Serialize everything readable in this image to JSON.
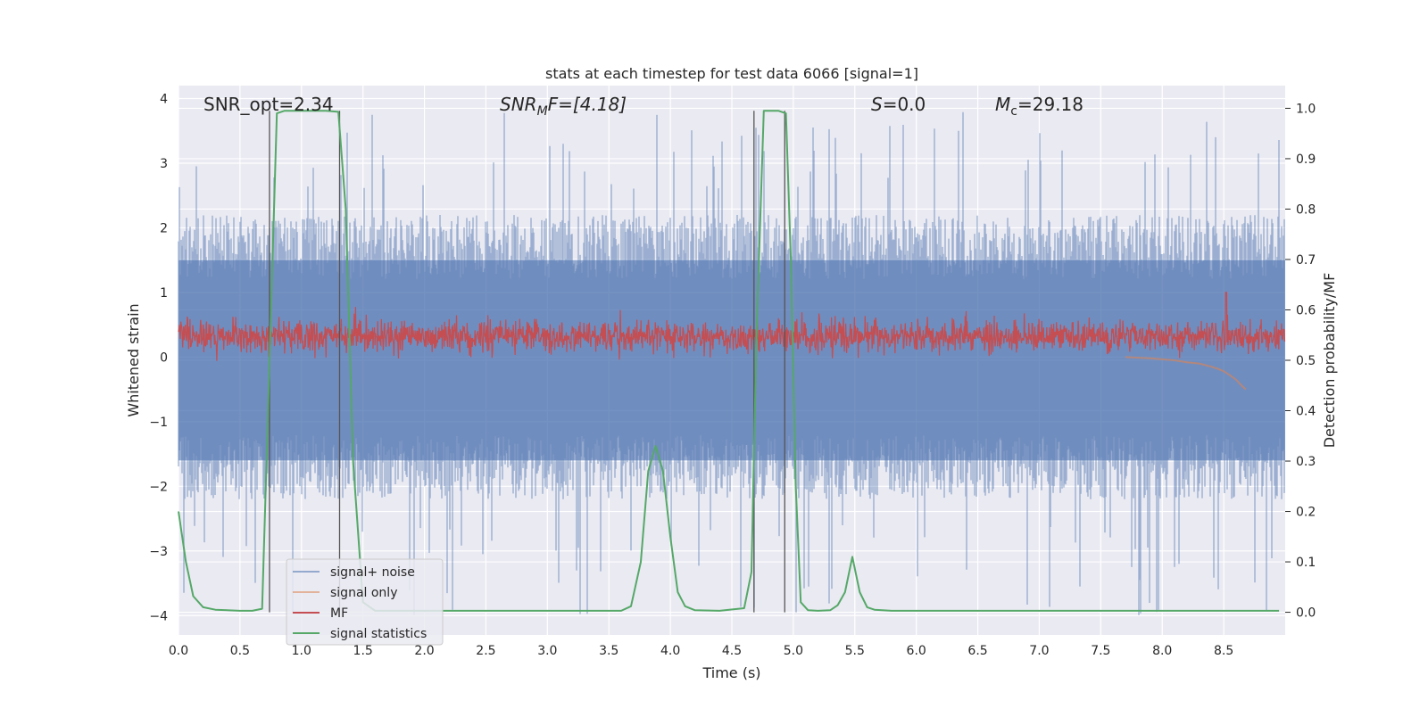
{
  "chart_data": {
    "type": "line",
    "title": "stats at each timestep for test data 6066 [signal=1]",
    "xlabel": "Time (s)",
    "ylabel_left": "Whitened strain",
    "ylabel_right": "Detection probability/MF",
    "xlim": [
      0.0,
      9.0
    ],
    "ylim_left": [
      -4.3,
      4.2
    ],
    "ylim_right": [
      -0.045,
      1.045
    ],
    "xticks": [
      "0.0",
      "0.5",
      "1.0",
      "1.5",
      "2.0",
      "2.5",
      "3.0",
      "3.5",
      "4.0",
      "4.5",
      "5.0",
      "5.5",
      "6.0",
      "6.5",
      "7.0",
      "7.5",
      "8.0",
      "8.5"
    ],
    "yticks_left": [
      "4",
      "3",
      "2",
      "1",
      "0",
      "−1",
      "−2",
      "−3",
      "−4"
    ],
    "yticks_right": [
      "1.0",
      "0.9",
      "0.8",
      "0.7",
      "0.6",
      "0.5",
      "0.4",
      "0.3",
      "0.2",
      "0.1",
      "0.0"
    ],
    "grid": true,
    "legend_position": "lower-left",
    "annotations": {
      "snr_opt": "SNR_opt=2.34",
      "snr_mf_main": "SNR",
      "snr_mf_sub": "M",
      "snr_mf_rest": "F=[4.18]",
      "s_var": "S",
      "s_rest": "=0.0",
      "mc_main": "M",
      "mc_sub": "c",
      "mc_rest": "=29.18"
    },
    "vertical_markers": [
      0.74,
      1.31,
      4.68,
      4.93
    ],
    "series": [
      {
        "name": "signal+ noise",
        "color": "#4c72b0",
        "axis": "left",
        "description_stats": {
          "typical_min": -2.2,
          "typical_max": 2.2,
          "extreme_min": -4.0,
          "extreme_max": 3.8
        }
      },
      {
        "name": "signal only",
        "color": "#dd8452",
        "axis": "left",
        "x": [
          7.7,
          7.9,
          8.1,
          8.2,
          8.3,
          8.4,
          8.45,
          8.5,
          8.55,
          8.6,
          8.65,
          8.68
        ],
        "y": [
          0.0,
          -0.02,
          -0.05,
          -0.08,
          -0.1,
          -0.15,
          -0.18,
          -0.22,
          -0.28,
          -0.35,
          -0.45,
          -0.5
        ]
      },
      {
        "name": "MF",
        "color": "#c44e52",
        "axis": "left",
        "description_stats": {
          "center": 0.32,
          "spread": 0.25,
          "peak": 1.0,
          "peak_x": 8.52
        }
      },
      {
        "name": "signal statistics",
        "color": "#55a868",
        "axis": "right",
        "x": [
          0.0,
          0.06,
          0.12,
          0.2,
          0.3,
          0.5,
          0.6,
          0.68,
          0.74,
          0.8,
          0.86,
          1.0,
          1.1,
          1.2,
          1.3,
          1.36,
          1.42,
          1.5,
          1.6,
          2.0,
          3.0,
          3.6,
          3.68,
          3.76,
          3.82,
          3.88,
          3.94,
          4.0,
          4.06,
          4.12,
          4.2,
          4.4,
          4.6,
          4.66,
          4.7,
          4.76,
          4.82,
          4.88,
          4.94,
          4.98,
          5.02,
          5.06,
          5.12,
          5.2,
          5.3,
          5.36,
          5.42,
          5.48,
          5.54,
          5.6,
          5.66,
          5.8,
          6.5,
          7.5,
          8.5,
          8.95
        ],
        "y": [
          0.2,
          0.1,
          0.032,
          0.01,
          0.005,
          0.003,
          0.003,
          0.007,
          0.5,
          0.99,
          0.995,
          0.995,
          0.995,
          0.995,
          0.993,
          0.8,
          0.3,
          0.02,
          0.003,
          0.003,
          0.003,
          0.003,
          0.012,
          0.1,
          0.28,
          0.33,
          0.28,
          0.15,
          0.04,
          0.012,
          0.004,
          0.003,
          0.008,
          0.08,
          0.55,
          0.995,
          0.995,
          0.995,
          0.99,
          0.7,
          0.25,
          0.02,
          0.004,
          0.003,
          0.004,
          0.014,
          0.04,
          0.11,
          0.04,
          0.01,
          0.005,
          0.003,
          0.003,
          0.003,
          0.003,
          0.003
        ]
      }
    ]
  }
}
